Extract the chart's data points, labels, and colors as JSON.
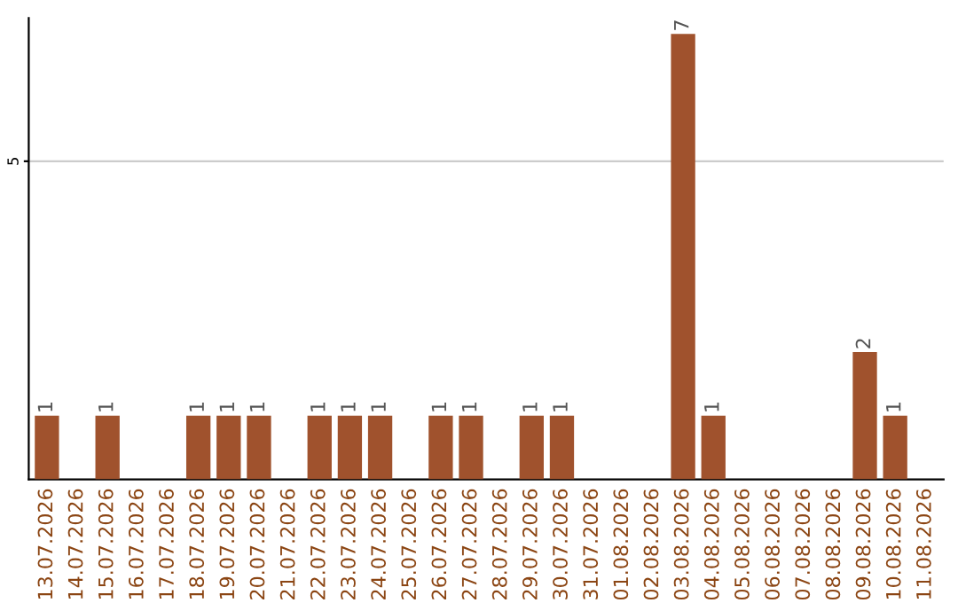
{
  "chart_data": {
    "type": "bar",
    "categories": [
      "13.07.2026",
      "14.07.2026",
      "15.07.2026",
      "16.07.2026",
      "17.07.2026",
      "18.07.2026",
      "19.07.2026",
      "20.07.2026",
      "21.07.2026",
      "22.07.2026",
      "23.07.2026",
      "24.07.2026",
      "25.07.2026",
      "26.07.2026",
      "27.07.2026",
      "28.07.2026",
      "29.07.2026",
      "30.07.2026",
      "31.07.2026",
      "01.08.2026",
      "02.08.2026",
      "03.08.2026",
      "04.08.2026",
      "05.08.2026",
      "06.08.2026",
      "07.08.2026",
      "08.08.2026",
      "09.08.2026",
      "10.08.2026",
      "11.08.2026"
    ],
    "values": [
      1,
      0,
      1,
      0,
      0,
      1,
      1,
      1,
      0,
      1,
      1,
      1,
      0,
      1,
      1,
      0,
      1,
      1,
      0,
      0,
      0,
      7,
      1,
      0,
      0,
      0,
      0,
      2,
      1,
      0
    ],
    "value_labels": [
      "1",
      null,
      "1",
      null,
      null,
      "1",
      "1",
      "1",
      null,
      "1",
      "1",
      "1",
      null,
      "1",
      "1",
      null,
      "1",
      "1",
      null,
      null,
      null,
      "7",
      "1",
      null,
      null,
      null,
      null,
      "2",
      "1",
      null
    ],
    "color": "#a0522d",
    "ylim": [
      0,
      7.25
    ],
    "yticks": [
      5
    ],
    "grid": "y"
  }
}
